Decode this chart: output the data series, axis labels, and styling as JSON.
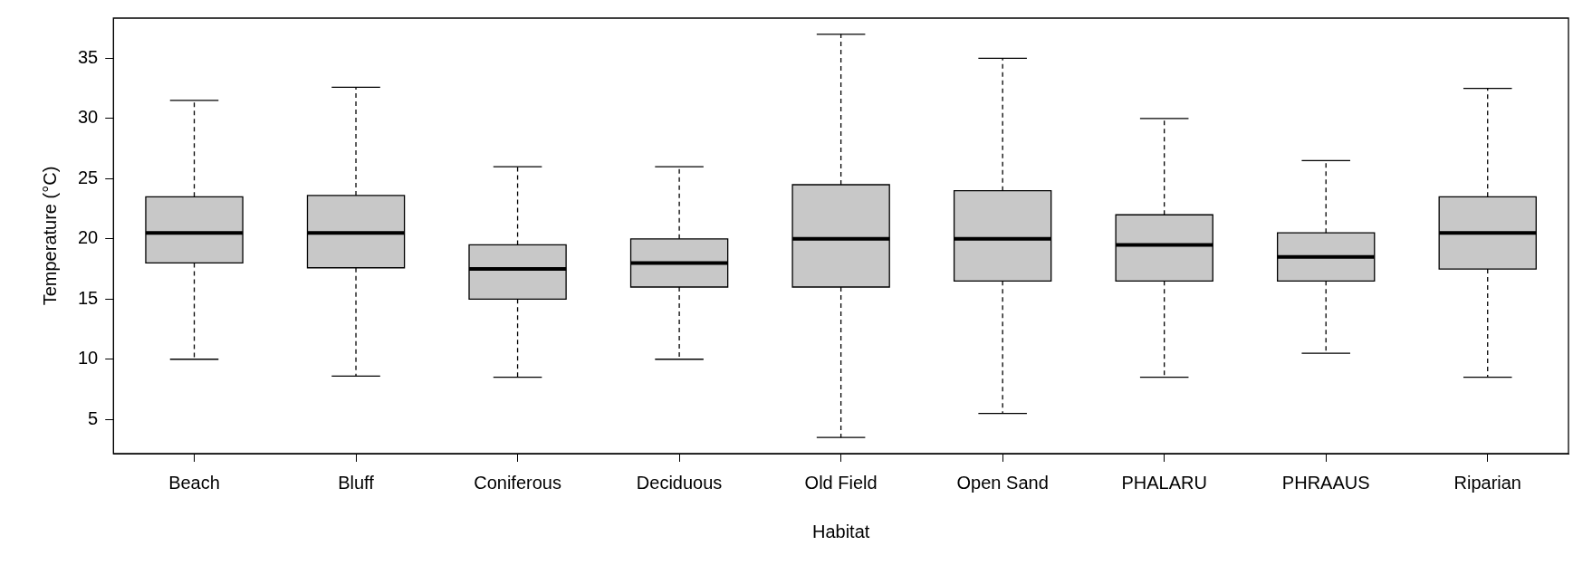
{
  "chart_data": {
    "type": "box",
    "xlabel": "Habitat",
    "ylabel": "Temperature (°C)",
    "categories": [
      "Beach",
      "Bluff",
      "Coniferous",
      "Deciduous",
      "Old Field",
      "Open Sand",
      "PHALARU",
      "PHRAAUS",
      "Riparian"
    ],
    "color": "#c8c8c8",
    "boxes": [
      {
        "low": 10,
        "q1": 18,
        "median": 20.5,
        "q3": 23.5,
        "high": 31.5
      },
      {
        "low": 8.6,
        "q1": 17.6,
        "median": 20.5,
        "q3": 23.6,
        "high": 32.6
      },
      {
        "low": 8.5,
        "q1": 15,
        "median": 17.5,
        "q3": 19.5,
        "high": 26
      },
      {
        "low": 10,
        "q1": 16,
        "median": 18,
        "q3": 20,
        "high": 26
      },
      {
        "low": 3.5,
        "q1": 16,
        "median": 20,
        "q3": 24.5,
        "high": 37
      },
      {
        "low": 5.5,
        "q1": 16.5,
        "median": 20,
        "q3": 24,
        "high": 35
      },
      {
        "low": 8.5,
        "q1": 16.5,
        "median": 19.5,
        "q3": 22,
        "high": 30
      },
      {
        "low": 10.5,
        "q1": 16.5,
        "median": 18.5,
        "q3": 20.5,
        "high": 26.5
      },
      {
        "low": 8.5,
        "q1": 17.5,
        "median": 20.5,
        "q3": 23.5,
        "high": 32.5
      }
    ],
    "ylim": [
      2.16,
      38.34
    ],
    "yticks": [
      5,
      10,
      15,
      20,
      25,
      30,
      35
    ],
    "grid": false,
    "legend": false
  }
}
